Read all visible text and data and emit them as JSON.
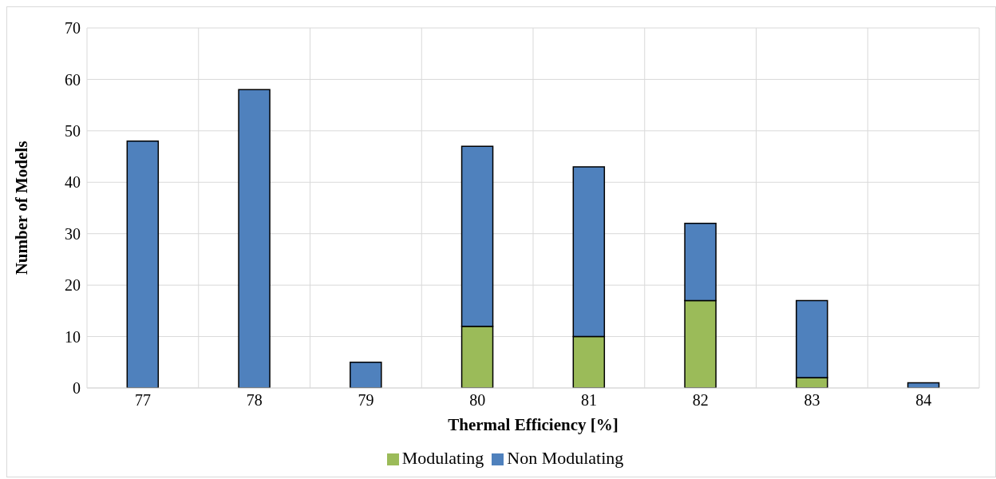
{
  "chart_data": {
    "type": "bar",
    "stacked": true,
    "xlabel": "Thermal Efficiency [%]",
    "ylabel": "Number of Models",
    "categories": [
      "77",
      "78",
      "79",
      "80",
      "81",
      "82",
      "83",
      "84"
    ],
    "series": [
      {
        "name": "Modulating",
        "color": "#9bbb59",
        "values": [
          0,
          0,
          0,
          12,
          10,
          17,
          2,
          0
        ]
      },
      {
        "name": "Non Modulating",
        "color": "#4f81bd",
        "values": [
          48,
          58,
          5,
          35,
          33,
          15,
          15,
          1
        ]
      }
    ],
    "ylim": [
      0,
      70
    ],
    "yticks": [
      0,
      10,
      20,
      30,
      40,
      50,
      60,
      70
    ],
    "grid": true,
    "legend": "bottom"
  }
}
